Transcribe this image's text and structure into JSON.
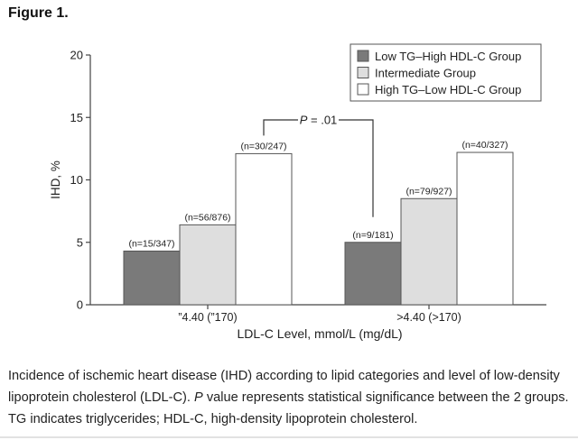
{
  "figure": {
    "label": "Figure 1."
  },
  "caption": {
    "part1": "Incidence of ischemic heart disease (IHD) according to lipid categories and level of low-density lipoprotein cholesterol (LDL-C). ",
    "p_italic": "P",
    "part2": " value represents statistical significance between the 2 groups. TG indicates triglycerides; HDL-C, high-density lipoprotein cholesterol."
  },
  "chart_data": {
    "type": "bar",
    "title": "",
    "xlabel": "LDL-C Level, mmol/L (mg/dL)",
    "ylabel": "IHD, %",
    "ylim": [
      0,
      20
    ],
    "yticks": [
      "0",
      "5",
      "10",
      "15",
      "20"
    ],
    "categories": [
      "”4.40 (”170)",
      ">4.40 (>170)"
    ],
    "grid": false,
    "legend_position": "top-right",
    "series": [
      {
        "name": "Low TG–High HDL-C Group",
        "color": "#7a7a7a",
        "values": [
          4.3,
          5.0
        ],
        "labels": [
          "(n=15/347)",
          "(n=9/181)"
        ]
      },
      {
        "name": "Intermediate Group",
        "color": "#dedede",
        "values": [
          6.4,
          8.5
        ],
        "labels": [
          "(n=56/876)",
          "(n=79/927)"
        ]
      },
      {
        "name": "High TG–Low HDL-C Group",
        "color": "#ffffff",
        "values": [
          12.1,
          12.2
        ],
        "labels": [
          "(n=30/247)",
          "(n=40/327)"
        ]
      }
    ],
    "annotation": {
      "text_italic": "P",
      "text_rest": " = .01"
    }
  }
}
